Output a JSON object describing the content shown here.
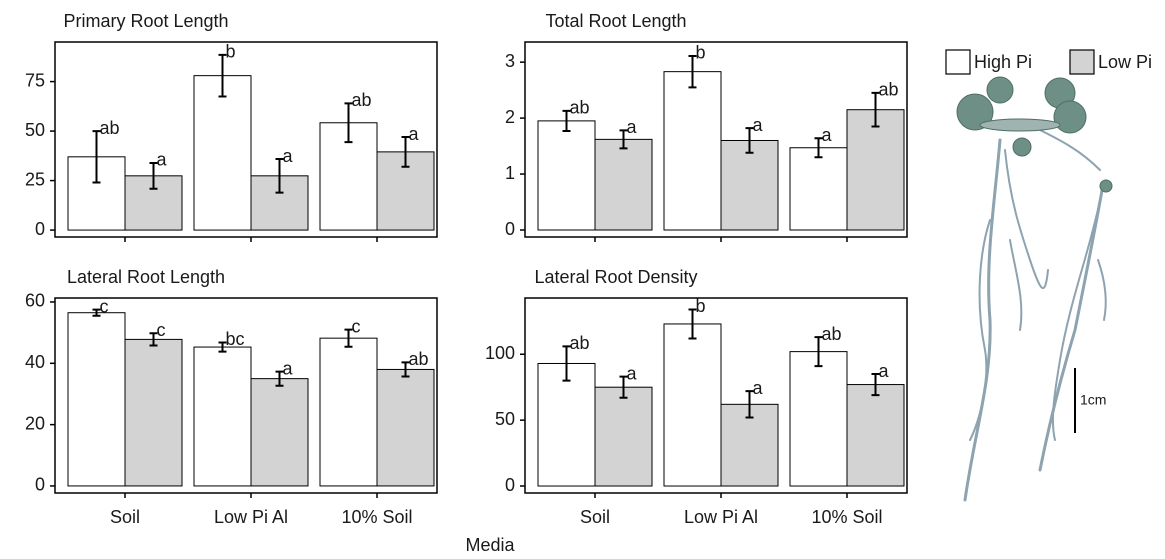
{
  "chart_data": [
    {
      "type": "bar",
      "title": "Primary Root Length",
      "categories": [
        null,
        null,
        null
      ],
      "ylim": [
        -3.5,
        95
      ],
      "yticks": [
        0,
        25,
        50,
        75
      ],
      "series": [
        {
          "name": "High Pi",
          "color": "#ffffff",
          "values": [
            37,
            78,
            54.2
          ],
          "errors": [
            13,
            10.5,
            9.8
          ],
          "letters": [
            "ab",
            "b",
            "ab"
          ]
        },
        {
          "name": "Low Pi",
          "color": "#d3d3d3",
          "values": [
            27.4,
            27.4,
            39.5
          ],
          "errors": [
            6.5,
            8.5,
            7.5
          ],
          "letters": [
            "a",
            "a",
            "a"
          ]
        }
      ]
    },
    {
      "type": "bar",
      "title": "Total Root Length",
      "categories": [
        null,
        null,
        null
      ],
      "ylim": [
        -0.125,
        3.36
      ],
      "yticks": [
        0,
        1,
        2,
        3
      ],
      "series": [
        {
          "name": "High Pi",
          "color": "#ffffff",
          "values": [
            1.95,
            2.83,
            1.47
          ],
          "errors": [
            0.18,
            0.28,
            0.17
          ],
          "letters": [
            "ab",
            "b",
            "a"
          ]
        },
        {
          "name": "Low Pi",
          "color": "#d3d3d3",
          "values": [
            1.62,
            1.6,
            2.15
          ],
          "errors": [
            0.16,
            0.22,
            0.3
          ],
          "letters": [
            "a",
            "a",
            "ab"
          ]
        }
      ]
    },
    {
      "type": "bar",
      "title": "Lateral Root Length",
      "categories": [
        "Soil",
        "Low Pi Al",
        "10% Soil"
      ],
      "ylim": [
        -2.3,
        61.3
      ],
      "yticks": [
        0,
        20,
        40,
        60
      ],
      "series": [
        {
          "name": "High Pi",
          "color": "#ffffff",
          "values": [
            56.5,
            45.3,
            48.2
          ],
          "errors": [
            1,
            1.5,
            2.8
          ],
          "letters": [
            "c",
            "bc",
            "c"
          ]
        },
        {
          "name": "Low Pi",
          "color": "#d3d3d3",
          "values": [
            47.8,
            35,
            38
          ],
          "errors": [
            2,
            2.3,
            2.3
          ],
          "letters": [
            "c",
            "a",
            "ab"
          ]
        }
      ]
    },
    {
      "type": "bar",
      "title": "Lateral Root Density",
      "categories": [
        "Soil",
        "Low Pi Al",
        "10% Soil"
      ],
      "ylim": [
        -5.3,
        142.7
      ],
      "yticks": [
        0,
        50,
        100
      ],
      "series": [
        {
          "name": "High Pi",
          "color": "#ffffff",
          "values": [
            93,
            123,
            102
          ],
          "errors": [
            13,
            11,
            11
          ],
          "letters": [
            "ab",
            "b",
            "ab"
          ]
        },
        {
          "name": "Low Pi",
          "color": "#d3d3d3",
          "values": [
            75,
            62,
            77
          ],
          "errors": [
            8,
            10,
            8
          ],
          "letters": [
            "a",
            "a",
            "a"
          ]
        }
      ]
    }
  ],
  "xlabel": "Media",
  "scale_bar_label": "1cm"
}
